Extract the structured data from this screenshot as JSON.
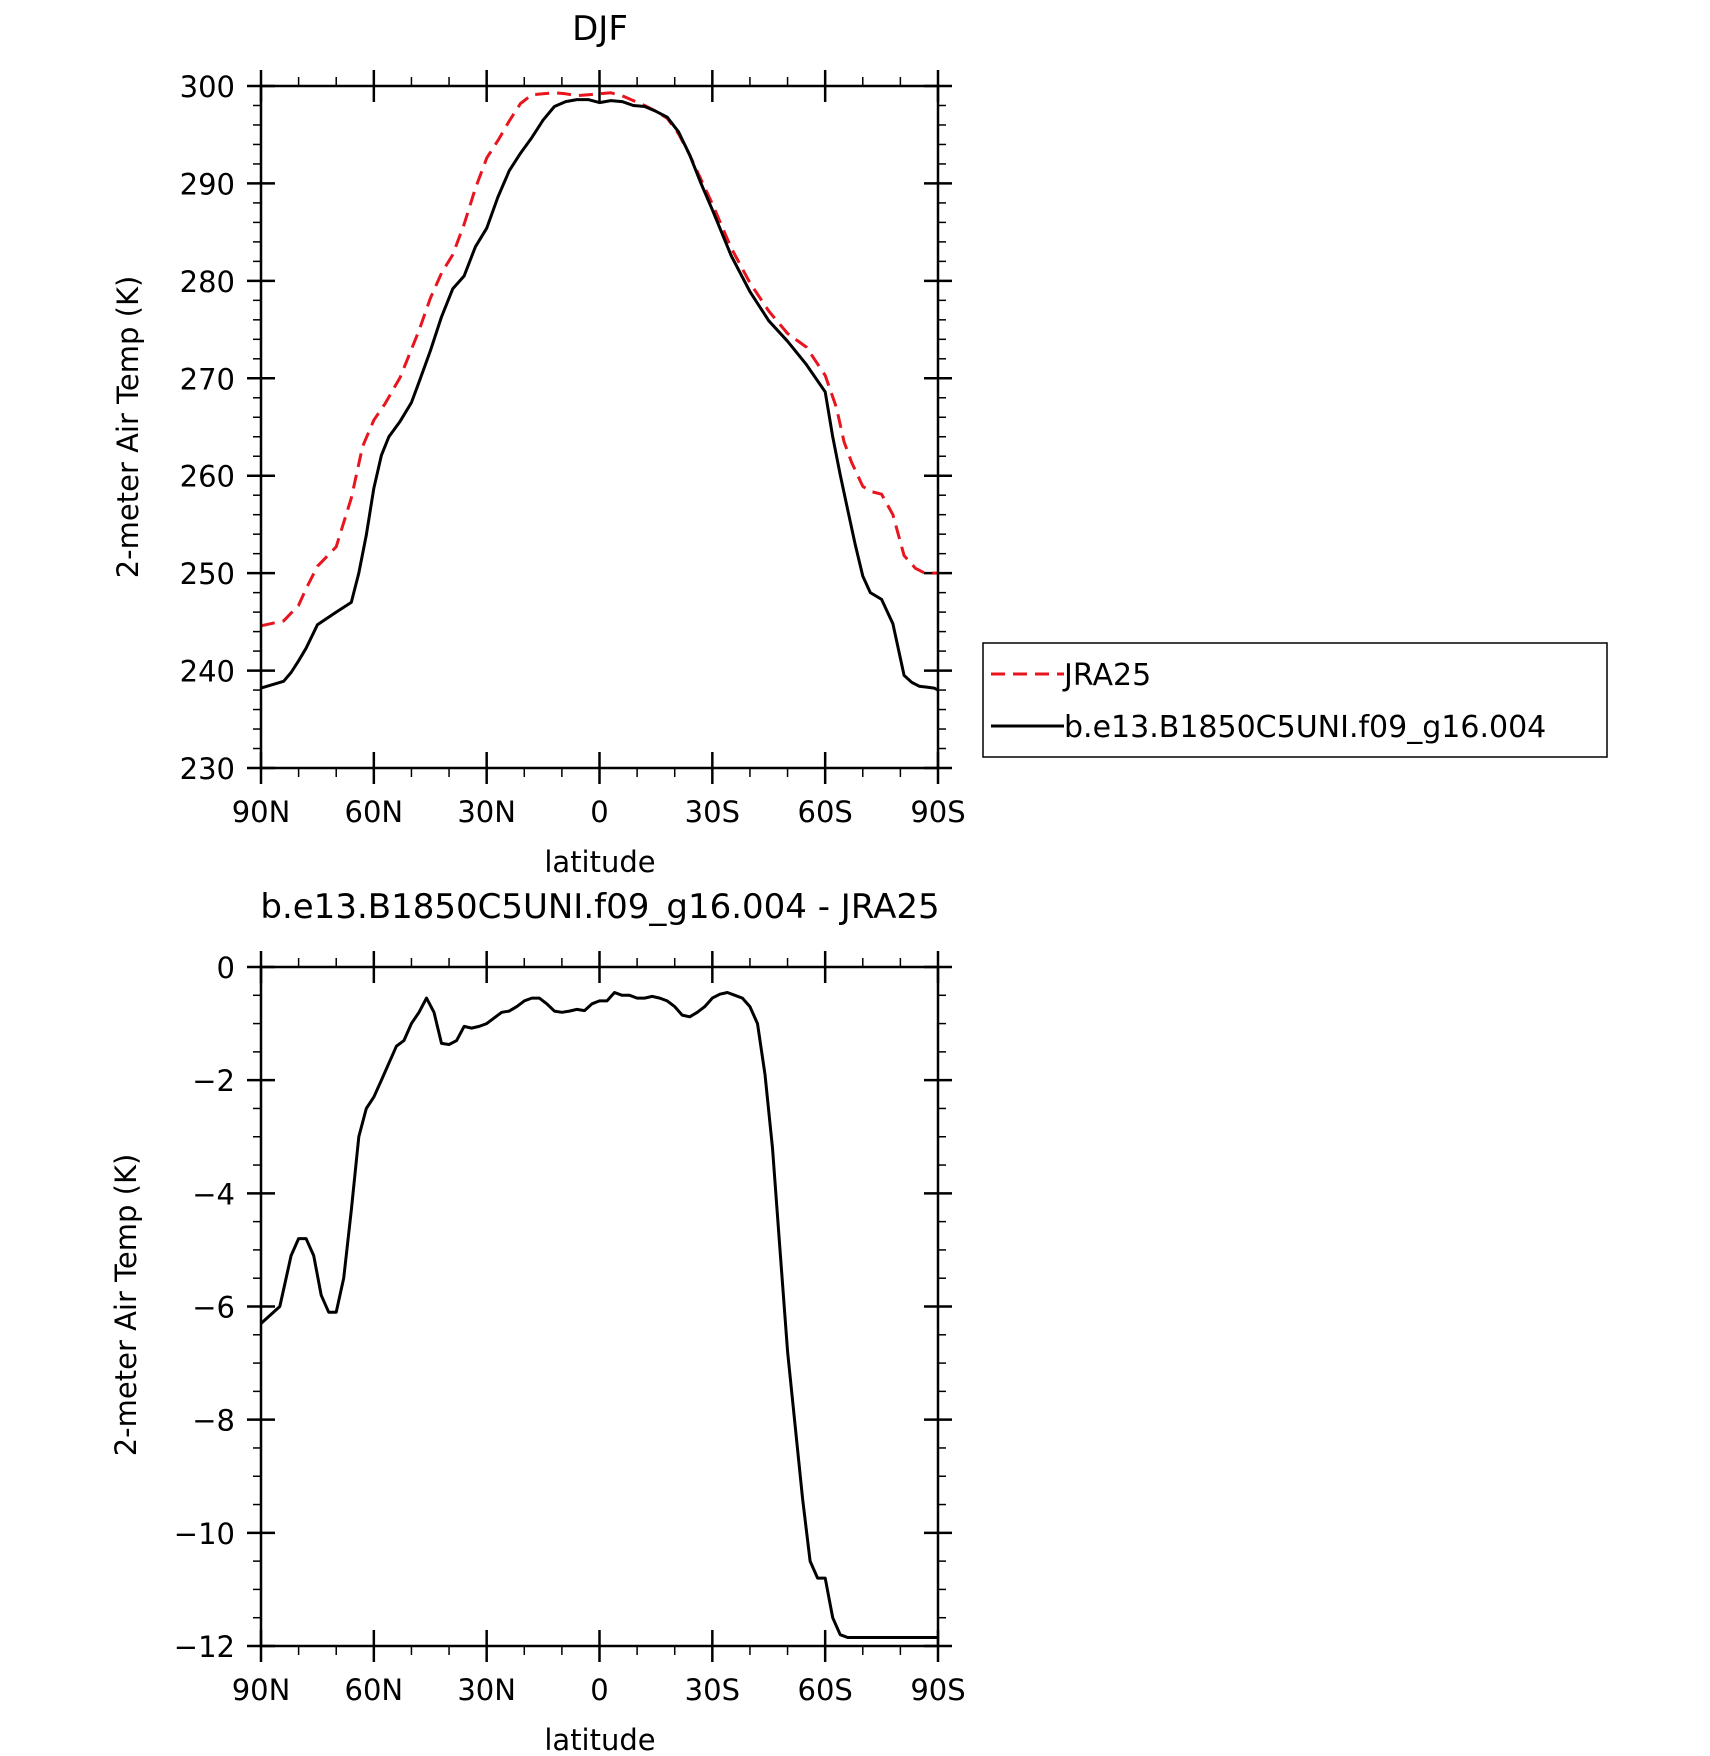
{
  "chart_data": [
    {
      "type": "line",
      "title": "DJF",
      "xlabel": "latitude",
      "ylabel": "2-meter Air Temp (K)",
      "xlim": [
        90,
        -90
      ],
      "ylim": [
        230,
        300
      ],
      "x_ticks": [
        90,
        60,
        30,
        0,
        -30,
        -60,
        -90
      ],
      "x_tick_labels": [
        "90N",
        "60N",
        "30N",
        "0",
        "30S",
        "60S",
        "90S"
      ],
      "y_ticks": [
        230,
        240,
        250,
        260,
        270,
        280,
        290,
        300
      ],
      "y_tick_labels": [
        "230",
        "240",
        "250",
        "260",
        "270",
        "280",
        "290",
        "300"
      ],
      "legend_position": "right",
      "series": [
        {
          "name": "JRA25",
          "color": "#e8141e",
          "dash": "dashed",
          "x": [
            90,
            84,
            80,
            78,
            75,
            70,
            66,
            63,
            60,
            57,
            53,
            48,
            45,
            42,
            39,
            36,
            33,
            30,
            27,
            24,
            21,
            18,
            15,
            12,
            9,
            6,
            3,
            0,
            -3,
            -6,
            -9,
            -12,
            -15,
            -18,
            -21,
            -24,
            -27,
            -30,
            -35,
            -40,
            -45,
            -50,
            -55,
            -60,
            -63,
            -65,
            -67,
            -70,
            -72,
            -75,
            -78,
            -81,
            -84,
            -86,
            -88,
            -90
          ],
          "y": [
            244.6,
            245.1,
            246.7,
            248.4,
            250.7,
            252.7,
            257.7,
            263.0,
            265.7,
            267.4,
            270.1,
            274.9,
            278.2,
            280.8,
            282.7,
            285.8,
            289.5,
            292.6,
            294.4,
            296.4,
            298.2,
            299.1,
            299.2,
            299.3,
            299.2,
            299.0,
            299.1,
            299.2,
            299.3,
            299.0,
            298.5,
            298.0,
            297.4,
            296.7,
            295.1,
            292.9,
            290.4,
            287.9,
            283.4,
            279.8,
            276.9,
            274.6,
            273.2,
            270.3,
            267.0,
            263.5,
            261.4,
            258.9,
            258.4,
            258.1,
            256.0,
            251.8,
            250.5,
            250.1,
            250.0,
            250.0
          ]
        },
        {
          "name": "b.e13.B1850C5UNI.f09_g16.004",
          "color": "#000000",
          "dash": "solid",
          "x": [
            90,
            84,
            82,
            80,
            78,
            75,
            70,
            66,
            64,
            62,
            60,
            58,
            56,
            53,
            50,
            48,
            45,
            42,
            39,
            36,
            33,
            30,
            27,
            24,
            21,
            18,
            15,
            12,
            9,
            6,
            3,
            0,
            -3,
            -6,
            -9,
            -12,
            -15,
            -18,
            -21,
            -24,
            -27,
            -30,
            -35,
            -40,
            -45,
            -50,
            -55,
            -60,
            -62,
            -64,
            -66,
            -68,
            -70,
            -72,
            -75,
            -78,
            -81,
            -83,
            -85,
            -87,
            -89,
            -90
          ],
          "y": [
            238.2,
            238.9,
            239.8,
            241.0,
            242.3,
            244.7,
            246.0,
            247.0,
            250.0,
            253.9,
            258.7,
            262.1,
            264.0,
            265.6,
            267.5,
            269.6,
            272.8,
            276.3,
            279.2,
            280.5,
            283.5,
            285.4,
            288.6,
            291.3,
            293.1,
            294.7,
            296.5,
            297.9,
            298.4,
            298.6,
            298.6,
            298.3,
            298.5,
            298.4,
            298.0,
            297.9,
            297.4,
            296.8,
            295.3,
            292.9,
            290.0,
            287.3,
            282.6,
            278.9,
            275.9,
            273.8,
            271.4,
            268.6,
            264.0,
            260.1,
            256.5,
            252.9,
            249.7,
            248.0,
            247.3,
            244.8,
            239.5,
            238.8,
            238.4,
            238.3,
            238.2,
            238.0
          ]
        }
      ]
    },
    {
      "type": "line",
      "title": "b.e13.B1850C5UNI.f09_g16.004 - JRA25",
      "xlabel": "latitude",
      "ylabel": "2-meter Air Temp (K)",
      "xlim": [
        90,
        -90
      ],
      "ylim": [
        -12,
        0
      ],
      "x_ticks": [
        90,
        60,
        30,
        0,
        -30,
        -60,
        -90
      ],
      "x_tick_labels": [
        "90N",
        "60N",
        "30N",
        "0",
        "30S",
        "60S",
        "90S"
      ],
      "y_ticks": [
        -12,
        -10,
        -8,
        -6,
        -4,
        -2,
        0
      ],
      "y_tick_labels": [
        "−12",
        "−10",
        "−8",
        "−6",
        "−4",
        "−2",
        "0"
      ],
      "series": [
        {
          "name": "",
          "color": "#000000",
          "dash": "solid",
          "x": [
            90,
            85,
            84,
            82,
            80,
            78,
            76,
            74,
            72,
            70,
            68,
            66,
            64,
            62,
            60,
            58,
            56,
            54,
            52,
            50,
            48,
            46,
            44,
            42,
            40,
            38,
            36,
            34,
            32,
            30,
            28,
            26,
            24,
            22,
            20,
            18,
            16,
            14,
            12,
            10,
            8,
            6,
            4,
            2,
            0,
            -2,
            -4,
            -6,
            -8,
            -10,
            -12,
            -14,
            -16,
            -18,
            -20,
            -22,
            -24,
            -26,
            -28,
            -30,
            -32,
            -34,
            -36,
            -38,
            -40,
            -42,
            -44,
            -46,
            -48,
            -50,
            -52,
            -54,
            -56,
            -58,
            -60,
            -62,
            -64,
            -66,
            -68,
            -70,
            -72,
            -74,
            -76,
            -78,
            -80,
            -82,
            -84,
            -86,
            -88,
            -89,
            -90
          ],
          "y": [
            -6.3,
            -6.0,
            -5.7,
            -5.1,
            -4.8,
            -4.8,
            -5.1,
            -5.8,
            -6.1,
            -6.1,
            -5.5,
            -4.3,
            -3.0,
            -2.5,
            -2.3,
            -2.0,
            -1.7,
            -1.4,
            -1.3,
            -1.0,
            -0.8,
            -0.55,
            -0.8,
            -1.35,
            -1.37,
            -1.3,
            -1.05,
            -1.08,
            -1.05,
            -1.0,
            -0.9,
            -0.8,
            -0.78,
            -0.7,
            -0.6,
            -0.55,
            -0.55,
            -0.65,
            -0.78,
            -0.8,
            -0.78,
            -0.75,
            -0.77,
            -0.65,
            -0.6,
            -0.6,
            -0.45,
            -0.5,
            -0.5,
            -0.55,
            -0.55,
            -0.52,
            -0.55,
            -0.6,
            -0.7,
            -0.85,
            -0.88,
            -0.8,
            -0.7,
            -0.55,
            -0.48,
            -0.45,
            -0.5,
            -0.55,
            -0.7,
            -1.0,
            -1.9,
            -3.2,
            -5.0,
            -6.8,
            -8.1,
            -9.4,
            -10.5,
            -10.8,
            -10.8,
            -11.5,
            -11.8,
            -11.85,
            -11.85,
            -11.85,
            -11.85,
            -11.85,
            -11.85,
            -11.85,
            -11.85,
            -11.85,
            -11.85,
            -11.85,
            -11.85,
            -11.85,
            -11.85
          ]
        }
      ]
    }
  ]
}
